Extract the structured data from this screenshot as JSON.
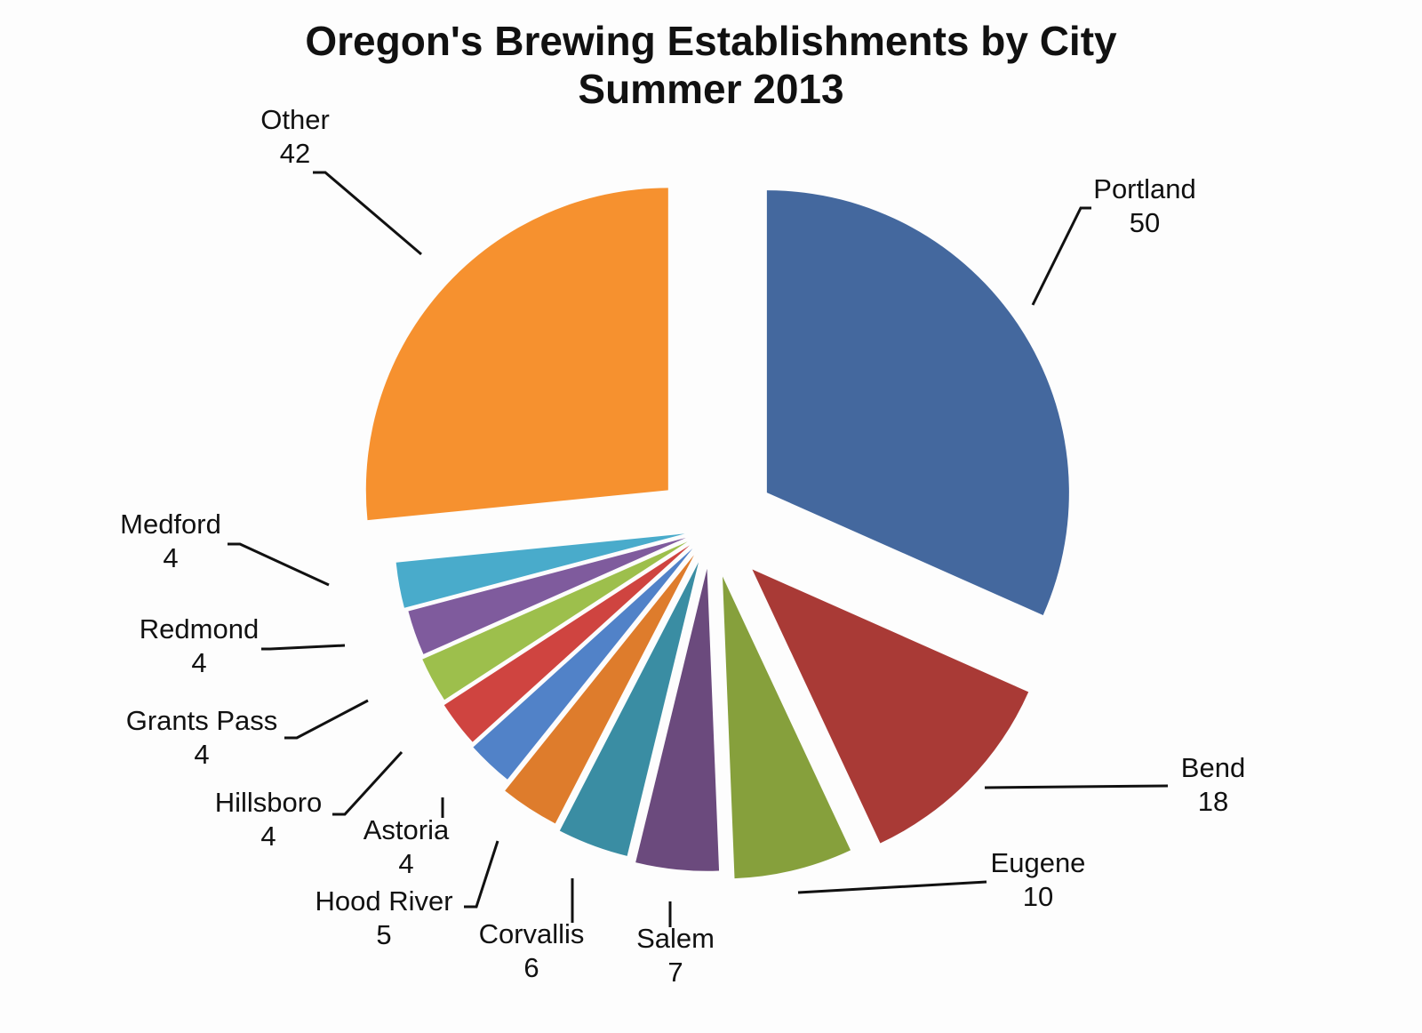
{
  "chart_data": {
    "type": "pie",
    "title": "Oregon's Brewing Establishments by City",
    "subtitle": "Summer 2013",
    "labels": [
      "Portland",
      "Bend",
      "Eugene",
      "Salem",
      "Corvallis",
      "Hood River",
      "Astoria",
      "Hillsboro",
      "Grants Pass",
      "Redmond",
      "Medford",
      "Other"
    ],
    "values": [
      50,
      18,
      10,
      7,
      6,
      5,
      4,
      4,
      4,
      4,
      4,
      42
    ],
    "colors": [
      "#44689e",
      "#a93a36",
      "#86a03c",
      "#6b4a7d",
      "#3a8da3",
      "#de7c2c",
      "#5182c8",
      "#cf4440",
      "#9dbf4c",
      "#7f5b9d",
      "#49abcb",
      "#f6912f"
    ],
    "exploded": true,
    "data_labels": "category name and value",
    "legend": "none"
  }
}
